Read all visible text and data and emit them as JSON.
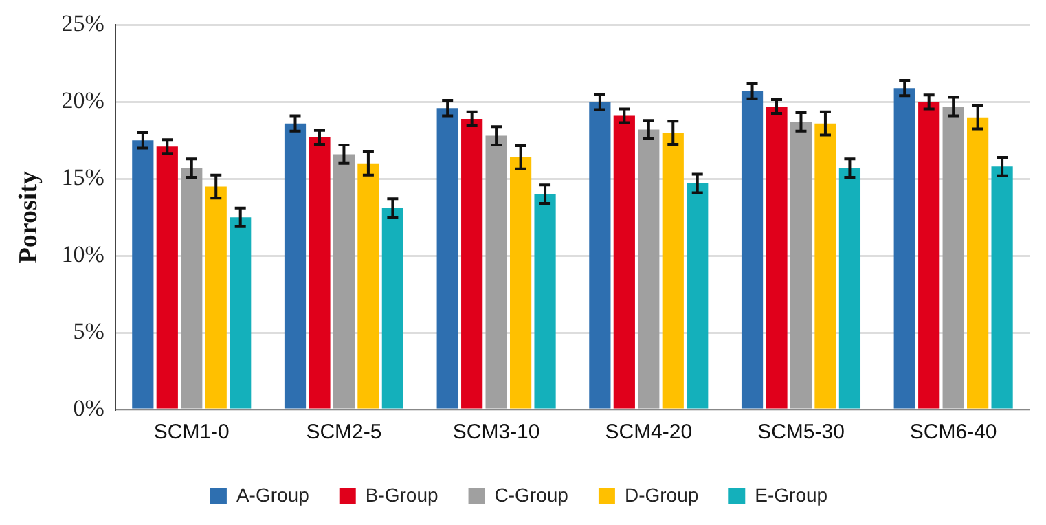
{
  "chart_data": {
    "type": "bar",
    "ylabel": "Porosity",
    "categories": [
      "SCM1-0",
      "SCM2-5",
      "SCM3-10",
      "SCM4-20",
      "SCM5-30",
      "SCM6-40"
    ],
    "series": [
      {
        "name": "A-Group",
        "color": "#2e6fb0",
        "values": [
          17.5,
          18.6,
          19.6,
          20.0,
          20.7,
          20.9
        ],
        "errors": [
          0.5,
          0.5,
          0.5,
          0.5,
          0.5,
          0.5
        ]
      },
      {
        "name": "B-Group",
        "color": "#e0001b",
        "values": [
          17.1,
          17.7,
          18.9,
          19.1,
          19.7,
          20.0
        ],
        "errors": [
          0.45,
          0.45,
          0.45,
          0.45,
          0.45,
          0.45
        ]
      },
      {
        "name": "C-Group",
        "color": "#a0a0a0",
        "values": [
          15.7,
          16.6,
          17.8,
          18.2,
          18.7,
          19.7
        ],
        "errors": [
          0.6,
          0.6,
          0.6,
          0.6,
          0.6,
          0.6
        ]
      },
      {
        "name": "D-Group",
        "color": "#ffc000",
        "values": [
          14.5,
          16.0,
          16.4,
          18.0,
          18.6,
          19.0
        ],
        "errors": [
          0.75,
          0.75,
          0.75,
          0.75,
          0.75,
          0.75
        ]
      },
      {
        "name": "E-Group",
        "color": "#14b0bb",
        "values": [
          12.5,
          13.1,
          14.0,
          14.7,
          15.7,
          15.8
        ],
        "errors": [
          0.6,
          0.6,
          0.6,
          0.6,
          0.6,
          0.6
        ]
      }
    ],
    "ylim": [
      0,
      25
    ],
    "yticks": [
      {
        "value": 0,
        "label": "0%"
      },
      {
        "value": 5,
        "label": "5%"
      },
      {
        "value": 10,
        "label": "10%"
      },
      {
        "value": 15,
        "label": "15%"
      },
      {
        "value": 20,
        "label": "20%"
      },
      {
        "value": 25,
        "label": "25%"
      }
    ],
    "grid": "y",
    "legend": "bottom"
  }
}
